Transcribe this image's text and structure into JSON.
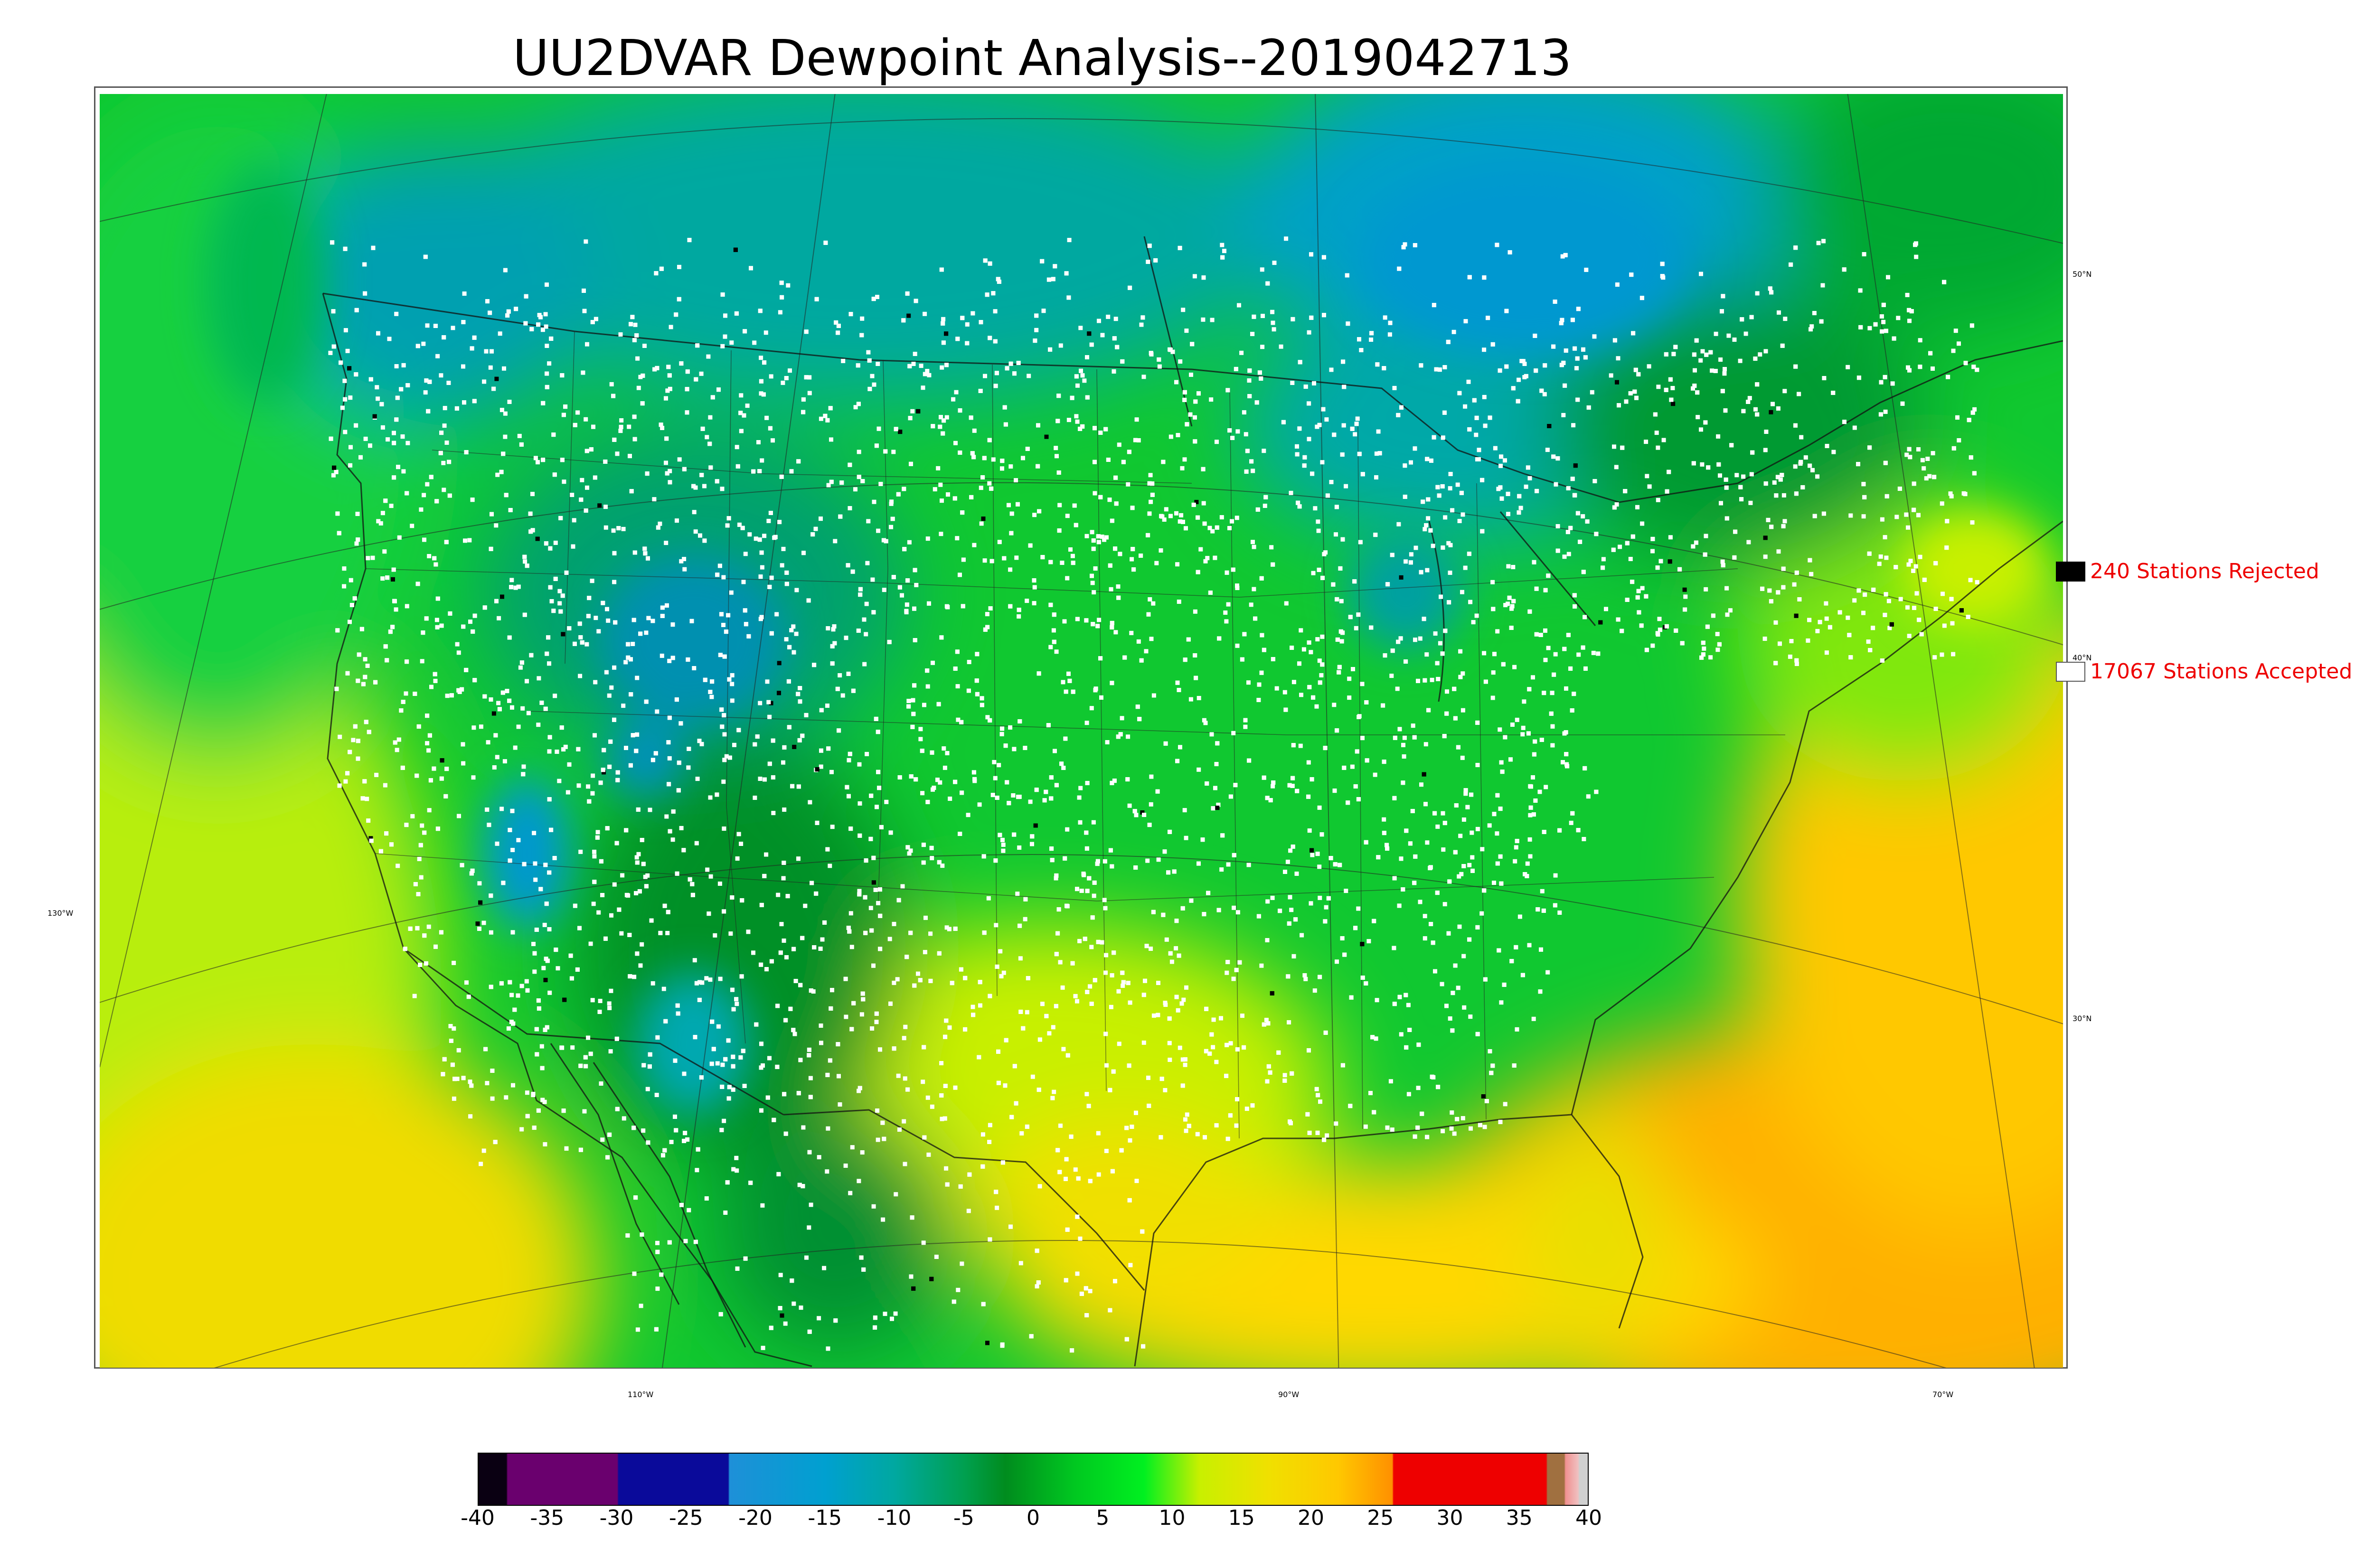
{
  "title": "UU2DVAR Dewpoint Analysis--2019042713",
  "legend": {
    "rejected": {
      "label": "240 Stations Rejected",
      "color": "#000000"
    },
    "accepted": {
      "label": "17067 Stations Accepted",
      "color": "#ffffff"
    },
    "text_color": "#ee0000"
  },
  "graticule_labels": {
    "longitude": [
      "130°W",
      "110°W",
      "90°W",
      "70°W"
    ],
    "latitude": [
      "50°N",
      "40°N",
      "30°N"
    ]
  },
  "colorbar": {
    "variable": "dewpoint",
    "range": [
      -40,
      40
    ],
    "ticks": [
      "-40",
      "-35",
      "-30",
      "-25",
      "-20",
      "-15",
      "-10",
      "-5",
      "0",
      "5",
      "10",
      "15",
      "20",
      "25",
      "30",
      "35",
      "40"
    ],
    "tick_values": [
      -40,
      -35,
      -30,
      -25,
      -20,
      -15,
      -10,
      -5,
      0,
      5,
      10,
      15,
      20,
      25,
      30,
      35,
      40
    ],
    "stops": [
      {
        "value": -40,
        "color": "#0a0012"
      },
      {
        "value": -38,
        "color": "#0a0012"
      },
      {
        "value": -37.9,
        "color": "#6a006e"
      },
      {
        "value": -30,
        "color": "#6a006e"
      },
      {
        "value": -29.9,
        "color": "#0a0a9a"
      },
      {
        "value": -22,
        "color": "#0a0a9a"
      },
      {
        "value": -21.9,
        "color": "#1e90d8"
      },
      {
        "value": -15,
        "color": "#00a0d0"
      },
      {
        "value": -10,
        "color": "#00a8a0"
      },
      {
        "value": -5,
        "color": "#00a050"
      },
      {
        "value": -2,
        "color": "#008c1e"
      },
      {
        "value": 3,
        "color": "#00c820"
      },
      {
        "value": 8,
        "color": "#00f020"
      },
      {
        "value": 12,
        "color": "#c8f000"
      },
      {
        "value": 17,
        "color": "#f0e000"
      },
      {
        "value": 22,
        "color": "#ffc800"
      },
      {
        "value": 25.9,
        "color": "#ff9000"
      },
      {
        "value": 26,
        "color": "#ee0000"
      },
      {
        "value": 37,
        "color": "#ee0000"
      },
      {
        "value": 37.1,
        "color": "#a07040"
      },
      {
        "value": 38.3,
        "color": "#a07040"
      },
      {
        "value": 38.4,
        "color": "#f09090"
      },
      {
        "value": 39.3,
        "color": "#f0c0c0"
      },
      {
        "value": 39.4,
        "color": "#d0d0d0"
      },
      {
        "value": 40,
        "color": "#d0d0d0"
      }
    ]
  }
}
